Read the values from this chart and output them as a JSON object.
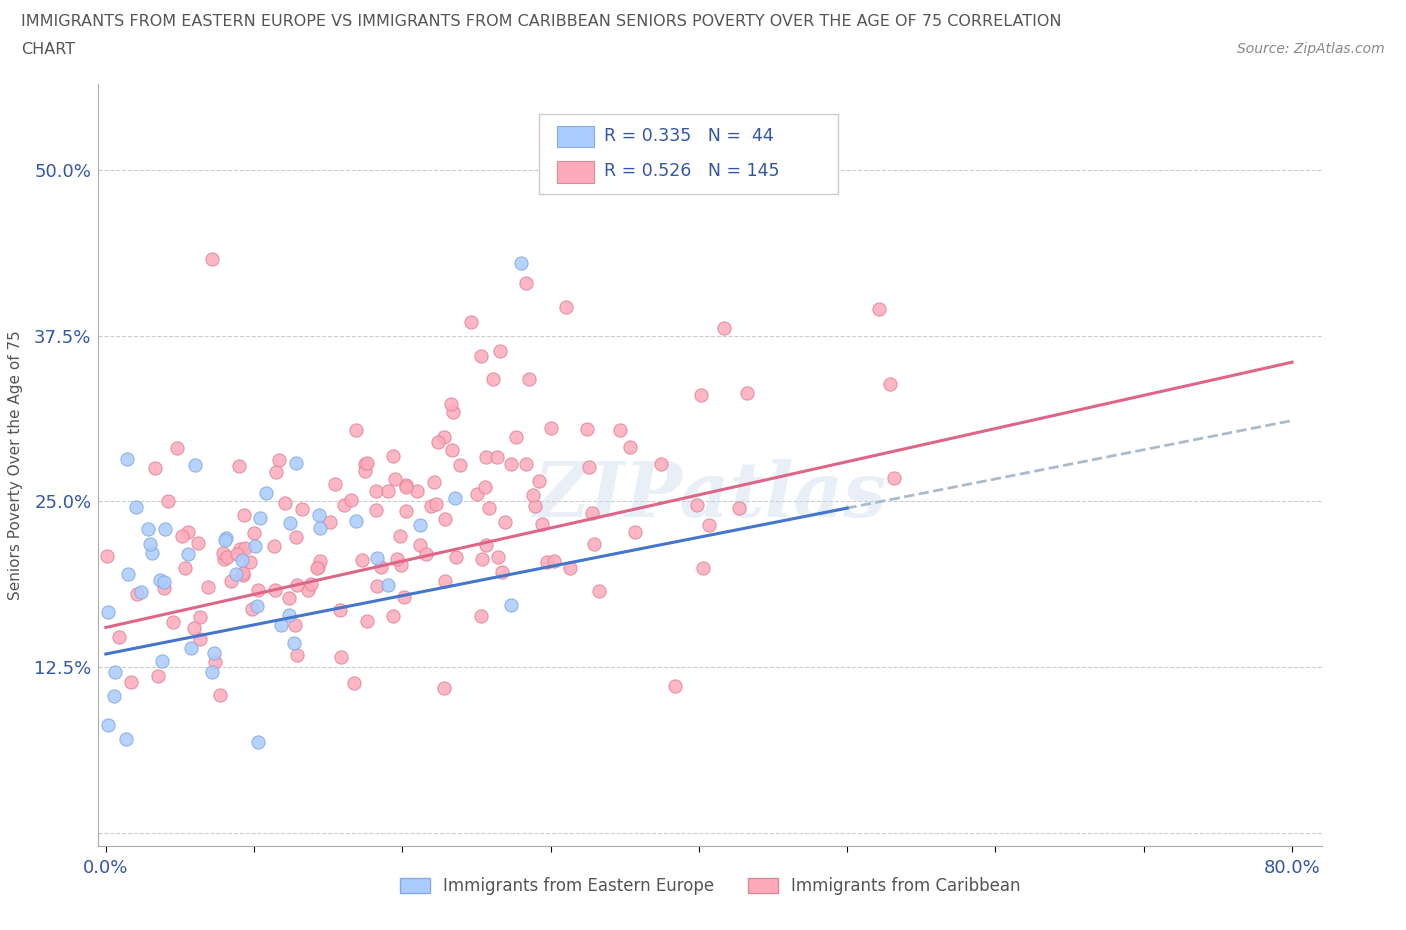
{
  "title_line1": "IMMIGRANTS FROM EASTERN EUROPE VS IMMIGRANTS FROM CARIBBEAN SENIORS POVERTY OVER THE AGE OF 75 CORRELATION",
  "title_line2": "CHART",
  "source": "Source: ZipAtlas.com",
  "ylabel": "Seniors Poverty Over the Age of 75",
  "xlim": [
    -0.005,
    0.82
  ],
  "ylim": [
    -0.01,
    0.565
  ],
  "ytick_labels": [
    "",
    "12.5%",
    "25.0%",
    "37.5%",
    "50.0%"
  ],
  "yticks": [
    0.0,
    0.125,
    0.25,
    0.375,
    0.5
  ],
  "series1_color": "#aaccff",
  "series1_edge": "#88aadd",
  "series2_color": "#ffaabb",
  "series2_edge": "#dd8899",
  "trend1_color": "#4477cc",
  "trend2_color": "#dd6688",
  "trend_dashed_color": "#aabbcc",
  "R1": 0.335,
  "N1": 44,
  "R2": 0.526,
  "N2": 145,
  "label1": "Immigrants from Eastern Europe",
  "label2": "Immigrants from Caribbean",
  "watermark": "ZIPatlas",
  "watermark_color": "#ccddeebb",
  "grid_color": "#cccccc",
  "title_color": "#555555",
  "legend_text_color": "#3355aa",
  "background_color": "#ffffff",
  "seed": 12345
}
